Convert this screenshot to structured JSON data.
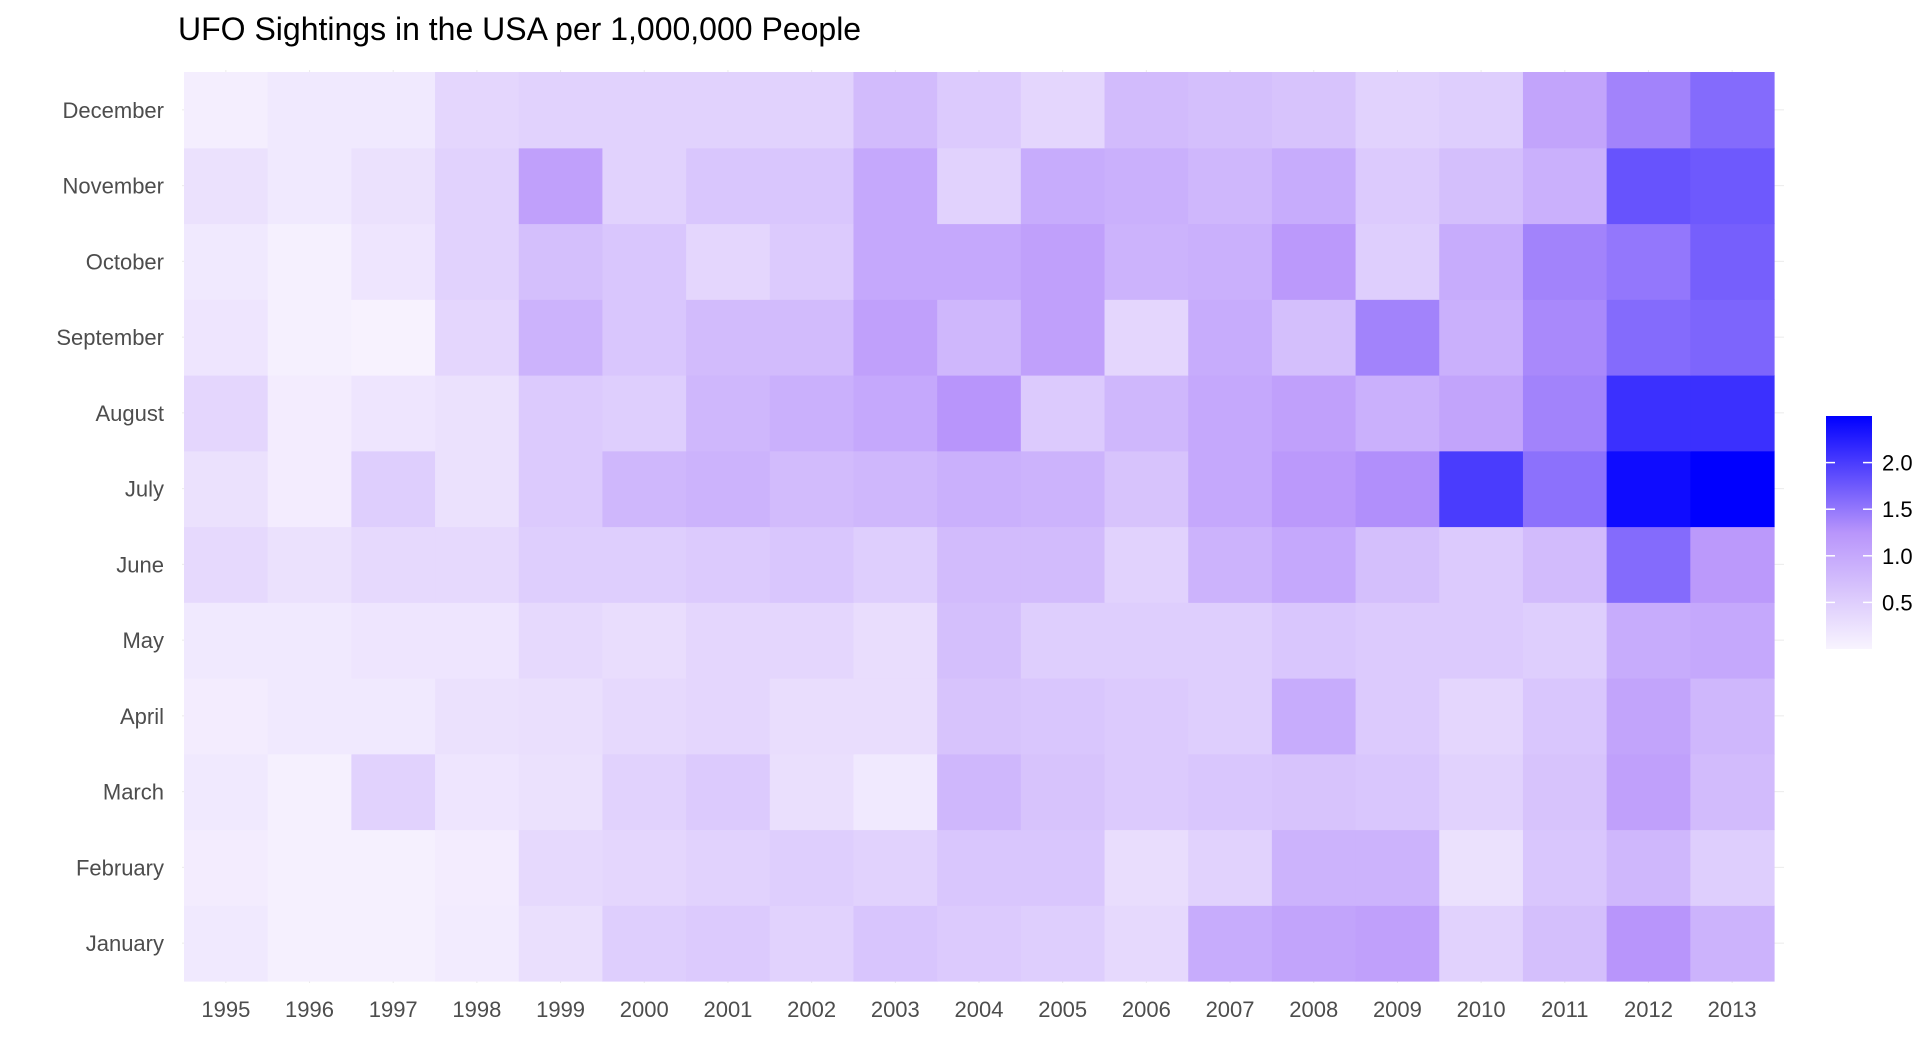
{
  "chart_data": {
    "type": "heatmap",
    "title": "UFO Sightings in the USA per 1,000,000 People",
    "xlabel": "",
    "ylabel": "",
    "x_categories": [
      "1995",
      "1996",
      "1997",
      "1998",
      "1999",
      "2000",
      "2001",
      "2002",
      "2003",
      "2004",
      "2005",
      "2006",
      "2007",
      "2008",
      "2009",
      "2010",
      "2011",
      "2012",
      "2013"
    ],
    "y_categories": [
      "January",
      "February",
      "March",
      "April",
      "May",
      "June",
      "July",
      "August",
      "September",
      "October",
      "November",
      "December"
    ],
    "color_scale": {
      "low_color": "#f8f4fe",
      "high_color": "#0000ff",
      "min": 0.0,
      "max": 2.5,
      "legend_ticks": [
        {
          "value": 0.5,
          "label": "0.5"
        },
        {
          "value": 1.0,
          "label": "1.0"
        },
        {
          "value": 1.5,
          "label": "1.5"
        },
        {
          "value": 2.0,
          "label": "2.0"
        }
      ],
      "legend_position": "right"
    },
    "values": [
      [
        0.15,
        0.05,
        0.05,
        0.12,
        0.28,
        0.5,
        0.55,
        0.45,
        0.62,
        0.55,
        0.5,
        0.35,
        0.95,
        1.05,
        1.1,
        0.45,
        0.7,
        1.25,
        0.85
      ],
      [
        0.1,
        0.05,
        0.05,
        0.1,
        0.35,
        0.4,
        0.45,
        0.5,
        0.45,
        0.6,
        0.6,
        0.3,
        0.45,
        0.85,
        0.85,
        0.25,
        0.6,
        0.8,
        0.5
      ],
      [
        0.15,
        0.05,
        0.45,
        0.2,
        0.25,
        0.45,
        0.55,
        0.28,
        0.15,
        0.8,
        0.65,
        0.55,
        0.6,
        0.65,
        0.6,
        0.45,
        0.65,
        1.1,
        0.75
      ],
      [
        0.1,
        0.15,
        0.15,
        0.25,
        0.28,
        0.35,
        0.4,
        0.3,
        0.3,
        0.65,
        0.6,
        0.55,
        0.5,
        0.95,
        0.55,
        0.4,
        0.6,
        1.05,
        0.8
      ],
      [
        0.15,
        0.15,
        0.2,
        0.2,
        0.35,
        0.3,
        0.4,
        0.4,
        0.3,
        0.7,
        0.5,
        0.5,
        0.5,
        0.6,
        0.55,
        0.55,
        0.5,
        0.95,
        1.0
      ],
      [
        0.35,
        0.25,
        0.35,
        0.35,
        0.5,
        0.5,
        0.55,
        0.6,
        0.5,
        0.75,
        0.75,
        0.45,
        0.85,
        1.0,
        0.7,
        0.55,
        0.75,
        1.6,
        1.2
      ],
      [
        0.25,
        0.1,
        0.5,
        0.25,
        0.55,
        0.8,
        0.85,
        0.75,
        0.8,
        0.9,
        0.85,
        0.65,
        1.0,
        1.2,
        1.3,
        2.0,
        1.55,
        2.4,
        2.5
      ],
      [
        0.4,
        0.1,
        0.2,
        0.25,
        0.55,
        0.5,
        0.8,
        0.9,
        1.0,
        1.25,
        0.55,
        0.8,
        1.0,
        1.1,
        0.9,
        1.05,
        1.4,
        2.1,
        2.1
      ],
      [
        0.2,
        0.05,
        0.02,
        0.4,
        0.85,
        0.6,
        0.75,
        0.75,
        1.1,
        0.8,
        1.1,
        0.4,
        0.95,
        0.7,
        1.4,
        0.9,
        1.35,
        1.6,
        1.65
      ],
      [
        0.15,
        0.05,
        0.2,
        0.45,
        0.7,
        0.6,
        0.4,
        0.55,
        1.0,
        1.0,
        1.1,
        0.85,
        0.9,
        1.2,
        0.5,
        0.95,
        1.4,
        1.5,
        1.7
      ],
      [
        0.25,
        0.15,
        0.25,
        0.45,
        1.1,
        0.45,
        0.6,
        0.6,
        1.0,
        0.45,
        0.95,
        0.9,
        0.8,
        0.95,
        0.55,
        0.7,
        0.9,
        1.8,
        1.75
      ],
      [
        0.08,
        0.15,
        0.15,
        0.4,
        0.45,
        0.45,
        0.45,
        0.45,
        0.75,
        0.55,
        0.4,
        0.75,
        0.7,
        0.65,
        0.45,
        0.5,
        1.05,
        1.4,
        1.6
      ]
    ]
  }
}
